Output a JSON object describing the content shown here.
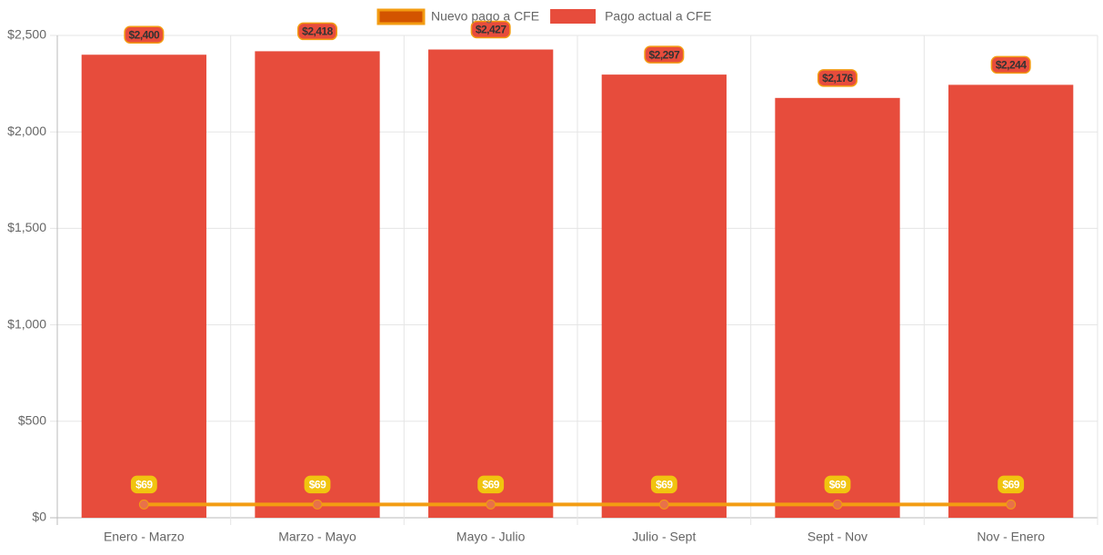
{
  "chart_data": {
    "type": "bar",
    "categories": [
      "Enero - Marzo",
      "Marzo - Mayo",
      "Mayo - Julio",
      "Julio - Sept",
      "Sept - Nov",
      "Nov - Enero"
    ],
    "series": [
      {
        "name": "Nuevo pago a CFE",
        "type": "line",
        "color": "#f39c12",
        "point_color": "#e8714a",
        "values": [
          69,
          69,
          69,
          69,
          69,
          69
        ],
        "value_labels": [
          "$69",
          "$69",
          "$69",
          "$69",
          "$69",
          "$69"
        ]
      },
      {
        "name": "Pago actual a CFE",
        "type": "bar",
        "color": "#e74c3c",
        "values": [
          2400,
          2418,
          2427,
          2297,
          2176,
          2244
        ],
        "value_labels": [
          "$2,400",
          "$2,418",
          "$2,427",
          "$2,297",
          "$2,176",
          "$2,244"
        ]
      }
    ],
    "ylim": [
      0,
      2500
    ],
    "yticks": [
      {
        "value": 0,
        "label": "$0"
      },
      {
        "value": 500,
        "label": "$500"
      },
      {
        "value": 1000,
        "label": "$1,000"
      },
      {
        "value": 1500,
        "label": "$1,500"
      },
      {
        "value": 2000,
        "label": "$2,000"
      },
      {
        "value": 2500,
        "label": "$2,500"
      }
    ],
    "grid": true,
    "legend": "top"
  }
}
